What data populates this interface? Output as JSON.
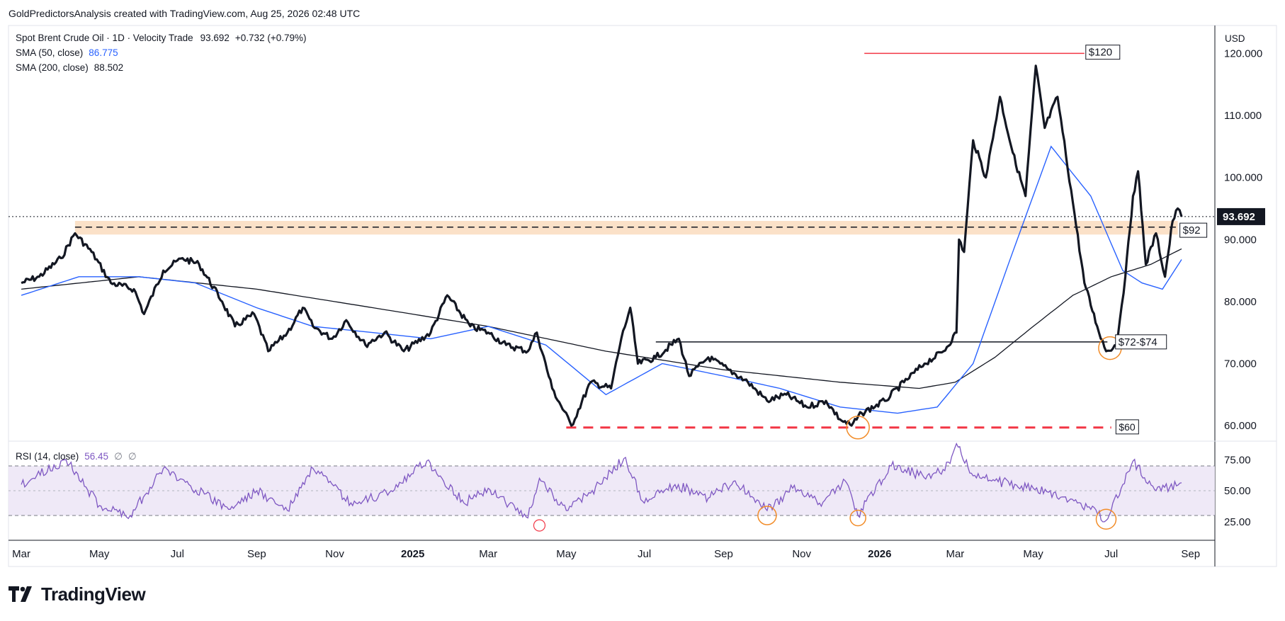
{
  "header": {
    "publisher_line": "GoldPredictorsAnalysis created with TradingView.com, Aug 25, 2026 02:48 UTC"
  },
  "legend": {
    "main": "Spot Brent Crude Oil · 1D · Velocity Trade",
    "last": "93.692",
    "change": "+0.732 (+0.79%)",
    "sma50_label": "SMA (50, close)",
    "sma50_value": "86.775",
    "sma200_label": "SMA (200, close)",
    "sma200_value": "88.502"
  },
  "rsi_legend": {
    "label": "RSI (14, close)",
    "value": "56.45",
    "extra1": "∅",
    "extra2": "∅"
  },
  "currency": "USD",
  "brand": {
    "name": "TradingView"
  },
  "colors": {
    "price_line": "#131722",
    "sma50": "#2962ff",
    "sma200": "#131722",
    "rsi": "#7e57c2",
    "rsi_band": "#ede7f6",
    "zone": "#f7c99a",
    "red": "#f23645",
    "circle": "#f28c28",
    "last_price_bg": "#131722"
  },
  "chart_data": [
    {
      "type": "line",
      "title": "Spot Brent Crude Oil · 1D · Velocity Trade",
      "x_ticks": [
        "Mar",
        "May",
        "Jul",
        "Sep",
        "Nov",
        "2025",
        "Mar",
        "May",
        "Jul",
        "Sep",
        "Nov",
        "2026",
        "Mar",
        "May",
        "Jul",
        "Sep"
      ],
      "y_ticks": [
        "60.000",
        "70.000",
        "80.000",
        "90.000",
        "100.000",
        "110.000",
        "120.000"
      ],
      "ylim": [
        57.5,
        124.5
      ],
      "last_price": 93.692,
      "series": [
        {
          "name": "Spot Brent Crude Oil",
          "x": [
            "2024-03-01",
            "2024-03-15",
            "2024-04-01",
            "2024-04-12",
            "2024-04-25",
            "2024-05-10",
            "2024-05-28",
            "2024-06-05",
            "2024-06-20",
            "2024-07-05",
            "2024-07-18",
            "2024-08-05",
            "2024-08-15",
            "2024-08-30",
            "2024-09-10",
            "2024-09-25",
            "2024-10-07",
            "2024-10-15",
            "2024-10-30",
            "2024-11-10",
            "2024-11-25",
            "2024-12-10",
            "2024-12-25",
            "2025-01-15",
            "2025-01-28",
            "2025-02-15",
            "2025-03-01",
            "2025-03-15",
            "2025-04-01",
            "2025-04-08",
            "2025-04-20",
            "2025-05-05",
            "2025-05-20",
            "2025-06-05",
            "2025-06-13",
            "2025-06-20",
            "2025-06-26",
            "2025-07-10",
            "2025-07-28",
            "2025-08-05",
            "2025-08-20",
            "2025-09-05",
            "2025-09-20",
            "2025-10-05",
            "2025-10-20",
            "2025-11-05",
            "2025-11-20",
            "2025-12-01",
            "2025-12-10",
            "2025-12-18",
            "2026-01-05",
            "2026-01-20",
            "2026-02-05",
            "2026-02-20",
            "2026-03-02",
            "2026-03-04",
            "2026-03-08",
            "2026-03-15",
            "2026-03-25",
            "2026-04-05",
            "2026-04-15",
            "2026-04-25",
            "2026-05-03",
            "2026-05-10",
            "2026-05-20",
            "2026-06-01",
            "2026-06-10",
            "2026-06-20",
            "2026-06-27",
            "2026-07-05",
            "2026-07-12",
            "2026-07-18",
            "2026-07-22",
            "2026-07-28",
            "2026-08-05",
            "2026-08-12",
            "2026-08-18",
            "2026-08-22",
            "2026-08-25"
          ],
          "y": [
            83,
            84,
            87,
            91,
            88,
            83,
            82,
            78,
            85,
            87,
            86,
            80,
            76,
            78,
            72,
            75,
            79,
            76,
            74,
            77,
            73,
            75,
            72,
            75,
            81,
            76,
            75,
            73,
            72,
            75,
            66,
            60,
            67,
            66,
            74,
            79,
            70,
            71,
            74,
            68,
            71,
            69,
            67,
            64,
            65,
            63,
            64,
            61,
            60,
            62,
            64,
            67,
            70,
            72,
            75,
            90,
            88,
            106,
            100,
            113,
            104,
            97,
            118,
            108,
            113,
            96,
            83,
            76,
            72,
            73,
            84,
            97,
            101,
            86,
            91,
            84,
            93,
            95,
            93.692
          ]
        },
        {
          "name": "SMA (50, close)",
          "x": [
            "2024-03-01",
            "2024-04-15",
            "2024-06-01",
            "2024-07-15",
            "2024-09-01",
            "2024-10-15",
            "2024-12-01",
            "2025-01-15",
            "2025-03-01",
            "2025-04-15",
            "2025-06-01",
            "2025-07-15",
            "2025-09-01",
            "2025-10-15",
            "2025-12-01",
            "2026-01-15",
            "2026-02-15",
            "2026-03-15",
            "2026-04-15",
            "2026-05-15",
            "2026-06-15",
            "2026-07-10",
            "2026-07-25",
            "2026-08-10",
            "2026-08-25"
          ],
          "y": [
            81,
            84,
            84,
            83,
            79,
            76,
            75,
            74,
            76,
            73,
            65,
            70,
            68,
            66,
            63,
            62,
            63,
            70,
            88,
            105,
            97,
            85,
            83,
            82,
            86.775
          ]
        },
        {
          "name": "SMA (200, close)",
          "x": [
            "2024-03-01",
            "2024-06-01",
            "2024-09-01",
            "2024-12-01",
            "2025-03-01",
            "2025-06-01",
            "2025-09-01",
            "2025-12-01",
            "2026-02-01",
            "2026-03-01",
            "2026-04-01",
            "2026-05-01",
            "2026-06-01",
            "2026-07-01",
            "2026-08-01",
            "2026-08-25"
          ],
          "y": [
            82,
            84,
            82,
            79,
            76,
            72,
            69,
            67,
            66,
            67,
            71,
            76,
            81,
            84,
            86,
            88.502
          ]
        }
      ],
      "annotations": {
        "target_120": "$120",
        "zone_92": "$92",
        "zone_72_74": "$72-$74",
        "support_60": "$60"
      }
    },
    {
      "type": "line",
      "title": "RSI (14, close)",
      "y_ticks": [
        "25.00",
        "50.00",
        "75.00"
      ],
      "ylim": [
        10,
        90
      ],
      "band": [
        30,
        70
      ],
      "series": [
        {
          "name": "RSI (14, close)",
          "x": [
            "2024-03-01",
            "2024-04-05",
            "2024-05-01",
            "2024-05-25",
            "2024-06-20",
            "2024-07-10",
            "2024-08-10",
            "2024-09-01",
            "2024-09-25",
            "2024-10-15",
            "2024-11-15",
            "2024-12-15",
            "2025-01-12",
            "2025-02-10",
            "2025-03-01",
            "2025-04-01",
            "2025-04-10",
            "2025-05-01",
            "2025-05-20",
            "2025-06-15",
            "2025-07-01",
            "2025-07-25",
            "2025-08-20",
            "2025-09-10",
            "2025-10-05",
            "2025-10-25",
            "2025-11-15",
            "2025-12-05",
            "2025-12-15",
            "2026-01-10",
            "2026-02-10",
            "2026-02-25",
            "2026-03-02",
            "2026-03-15",
            "2026-04-01",
            "2026-05-01",
            "2026-05-25",
            "2026-06-15",
            "2026-06-27",
            "2026-07-10",
            "2026-07-18",
            "2026-08-05",
            "2026-08-25"
          ],
          "y": [
            55,
            75,
            38,
            30,
            68,
            55,
            35,
            50,
            34,
            68,
            38,
            50,
            74,
            40,
            52,
            28,
            60,
            34,
            48,
            76,
            40,
            55,
            44,
            58,
            34,
            52,
            40,
            58,
            30,
            70,
            60,
            72,
            88,
            62,
            58,
            52,
            45,
            35,
            26,
            55,
            74,
            50,
            56.45
          ]
        }
      ]
    }
  ]
}
